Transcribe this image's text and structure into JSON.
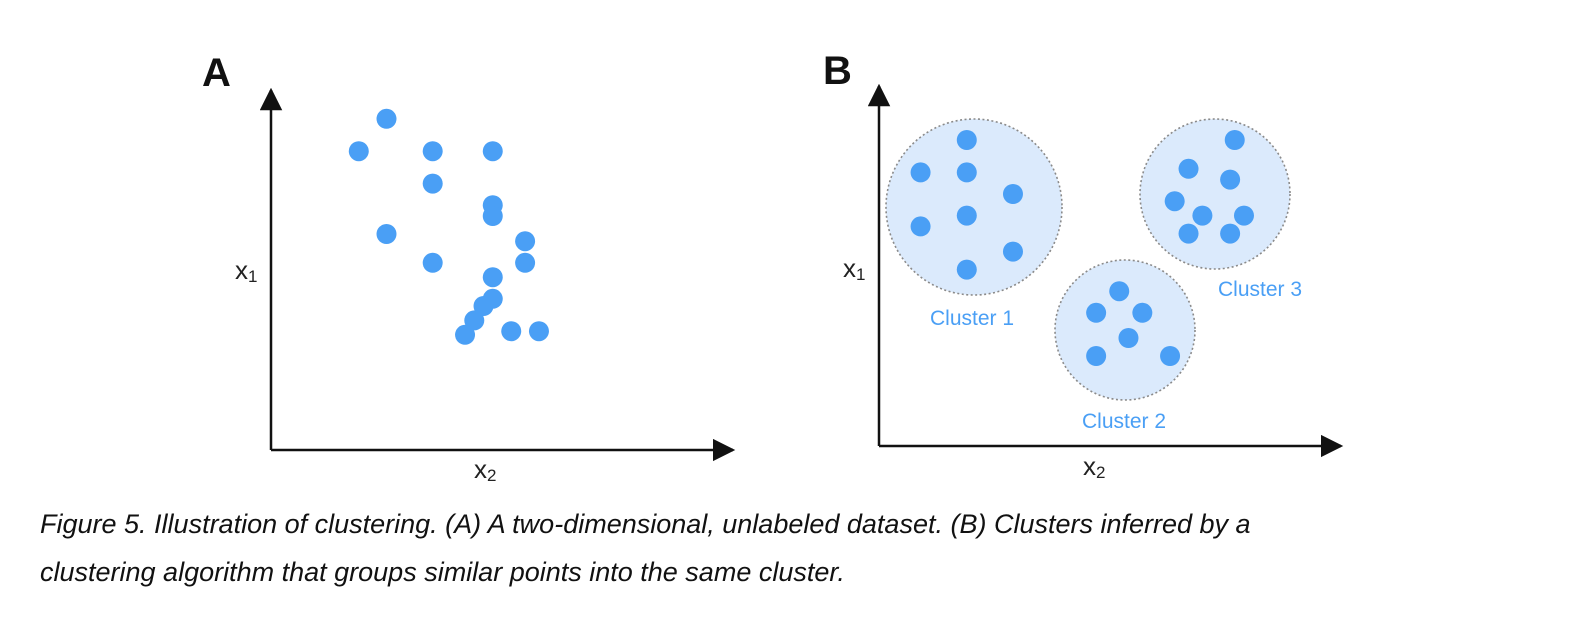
{
  "colors": {
    "point": "#4a9ff5",
    "cluster_fill": "#dbeafc",
    "cluster_stroke": "#8a8a8a",
    "cluster_label": "#4a9ff5",
    "axis": "#111111"
  },
  "panel_a": {
    "letter": "A",
    "ylabel": "x",
    "ylabel_sub": "1",
    "xlabel": "x",
    "xlabel_sub": "2",
    "points": [
      [
        0.19,
        0.83
      ],
      [
        0.25,
        0.92
      ],
      [
        0.35,
        0.74
      ],
      [
        0.35,
        0.83
      ],
      [
        0.48,
        0.68
      ],
      [
        0.48,
        0.83
      ],
      [
        0.25,
        0.6
      ],
      [
        0.35,
        0.52
      ],
      [
        0.48,
        0.48
      ],
      [
        0.48,
        0.65
      ],
      [
        0.55,
        0.52
      ],
      [
        0.55,
        0.58
      ],
      [
        0.42,
        0.32
      ],
      [
        0.48,
        0.42
      ],
      [
        0.44,
        0.36
      ],
      [
        0.46,
        0.4
      ],
      [
        0.52,
        0.33
      ],
      [
        0.58,
        0.33
      ]
    ]
  },
  "panel_b": {
    "letter": "B",
    "ylabel": "x",
    "ylabel_sub": "1",
    "xlabel": "x",
    "xlabel_sub": "2",
    "clusters": [
      {
        "label": "Cluster 1",
        "points": [
          [
            0.09,
            0.76
          ],
          [
            0.19,
            0.85
          ],
          [
            0.19,
            0.76
          ],
          [
            0.19,
            0.64
          ],
          [
            0.09,
            0.61
          ],
          [
            0.29,
            0.7
          ],
          [
            0.29,
            0.54
          ],
          [
            0.19,
            0.49
          ]
        ]
      },
      {
        "label": "Cluster 2",
        "points": [
          [
            0.52,
            0.43
          ],
          [
            0.47,
            0.37
          ],
          [
            0.57,
            0.37
          ],
          [
            0.54,
            0.3
          ],
          [
            0.47,
            0.25
          ],
          [
            0.63,
            0.25
          ]
        ]
      },
      {
        "label": "Cluster 3",
        "points": [
          [
            0.77,
            0.85
          ],
          [
            0.67,
            0.77
          ],
          [
            0.76,
            0.74
          ],
          [
            0.64,
            0.68
          ],
          [
            0.7,
            0.64
          ],
          [
            0.79,
            0.64
          ],
          [
            0.67,
            0.59
          ],
          [
            0.76,
            0.59
          ]
        ]
      }
    ]
  },
  "caption": {
    "line1": "Figure 5. Illustration of clustering. (A) A two-dimensional, unlabeled dataset. (B) Clusters inferred by a",
    "line2": "clustering algorithm that groups similar points into the same cluster."
  }
}
